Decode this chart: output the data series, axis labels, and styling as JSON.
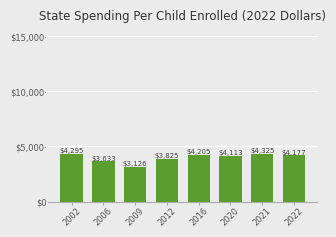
{
  "title": "State Spending Per Child Enrolled (2022 Dollars)",
  "categories": [
    "2002",
    "2006",
    "2009",
    "2012",
    "2016",
    "2020",
    "2021",
    "2022"
  ],
  "values": [
    4295,
    3633,
    3126,
    3825,
    4205,
    4113,
    4325,
    4177
  ],
  "labels": [
    "$4,295",
    "$3,633",
    "$3,126",
    "$3,825",
    "$4,205",
    "$4,113",
    "$4,325",
    "$4,177"
  ],
  "bar_color": "#5a9e2f",
  "ylim": [
    0,
    16000
  ],
  "yticks": [
    0,
    5000,
    10000,
    15000
  ],
  "ytick_labels": [
    "$0",
    "$5,000·",
    "$10,000·",
    "$15,000·"
  ],
  "title_fontsize": 8.5,
  "label_fontsize": 5.0,
  "tick_fontsize": 6.0,
  "background_color": "#ebebeb"
}
